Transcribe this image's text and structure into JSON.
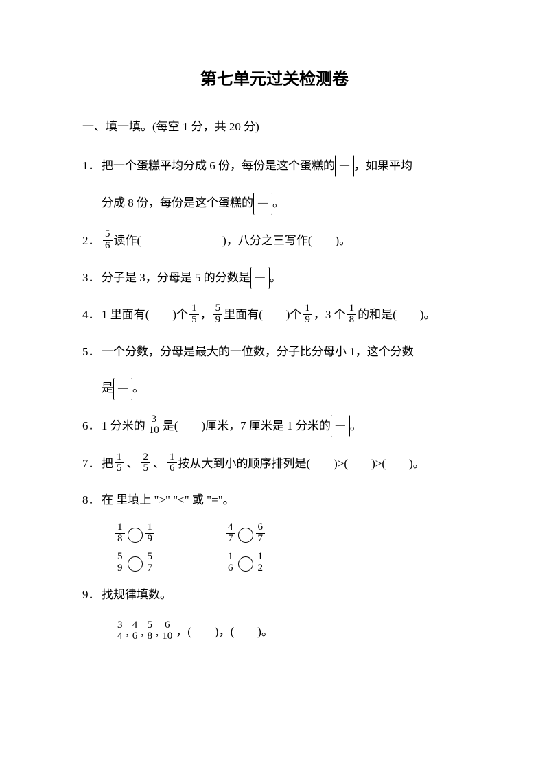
{
  "title": "第七单元过关检测卷",
  "section1": {
    "heading": "一、填一填。(每空 1 分，共 20 分)",
    "q1": {
      "num": "1．",
      "part1": "把一个蛋糕平均分成 6 份，每份是这个蛋糕的",
      "part2": "，如果平均",
      "line2a": "分成 8 份，每份是这个蛋糕的",
      "line2b": "。"
    },
    "q2": {
      "num": "2．",
      "frac_num": "5",
      "frac_den": "6",
      "part1": "读作(　　　　　　　)，八分之三写作(　　)。"
    },
    "q3": {
      "num": "3．",
      "part1": "分子是 3，分母是 5 的分数是",
      "part2": "。"
    },
    "q4": {
      "num": "4．",
      "part1": "1 里面有(　　)个",
      "f1_num": "1",
      "f1_den": "5",
      "part2": "，",
      "f2_num": "5",
      "f2_den": "9",
      "part3": "里面有(　　)个",
      "f3_num": "1",
      "f3_den": "9",
      "part4": "，3 个",
      "f4_num": "1",
      "f4_den": "8",
      "part5": "的和是(　　)。"
    },
    "q5": {
      "num": "5．",
      "part1": "一个分数，分母是最大的一位数，分子比分母小 1，这个分数",
      "line2a": "是",
      "line2b": "。"
    },
    "q6": {
      "num": "6．",
      "part1": "1 分米的",
      "f1_num": "3",
      "f1_den": "10",
      "part2": "是(　　)厘米，7 厘米是 1 分米的",
      "part3": "。"
    },
    "q7": {
      "num": "7．",
      "part1": "把",
      "f1_num": "1",
      "f1_den": "5",
      "sep1": "、",
      "f2_num": "2",
      "f2_den": "5",
      "sep2": "、",
      "f3_num": "1",
      "f3_den": "6",
      "part2": "按从大到小的顺序排列是(　　)>(　　)>(　　)。"
    },
    "q8": {
      "num": "8．",
      "part1": "在 里填上 \">\" \"<\" 或 \"=\"。",
      "row1": {
        "a_f1_num": "1",
        "a_f1_den": "8",
        "a_f2_num": "1",
        "a_f2_den": "9",
        "b_f1_num": "4",
        "b_f1_den": "7",
        "b_f2_num": "6",
        "b_f2_den": "7"
      },
      "row2": {
        "a_f1_num": "5",
        "a_f1_den": "9",
        "a_f2_num": "5",
        "a_f2_den": "7",
        "b_f1_num": "1",
        "b_f1_den": "6",
        "b_f2_num": "1",
        "b_f2_den": "2"
      }
    },
    "q9": {
      "num": "9．",
      "part1": "找规律填数。",
      "f1_num": "3",
      "f1_den": "4",
      "f2_num": "4",
      "f2_den": "6",
      "f3_num": "5",
      "f3_den": "8",
      "f4_num": "6",
      "f4_den": "10",
      "seq_tail": "，(　　)，(　　)。"
    }
  }
}
